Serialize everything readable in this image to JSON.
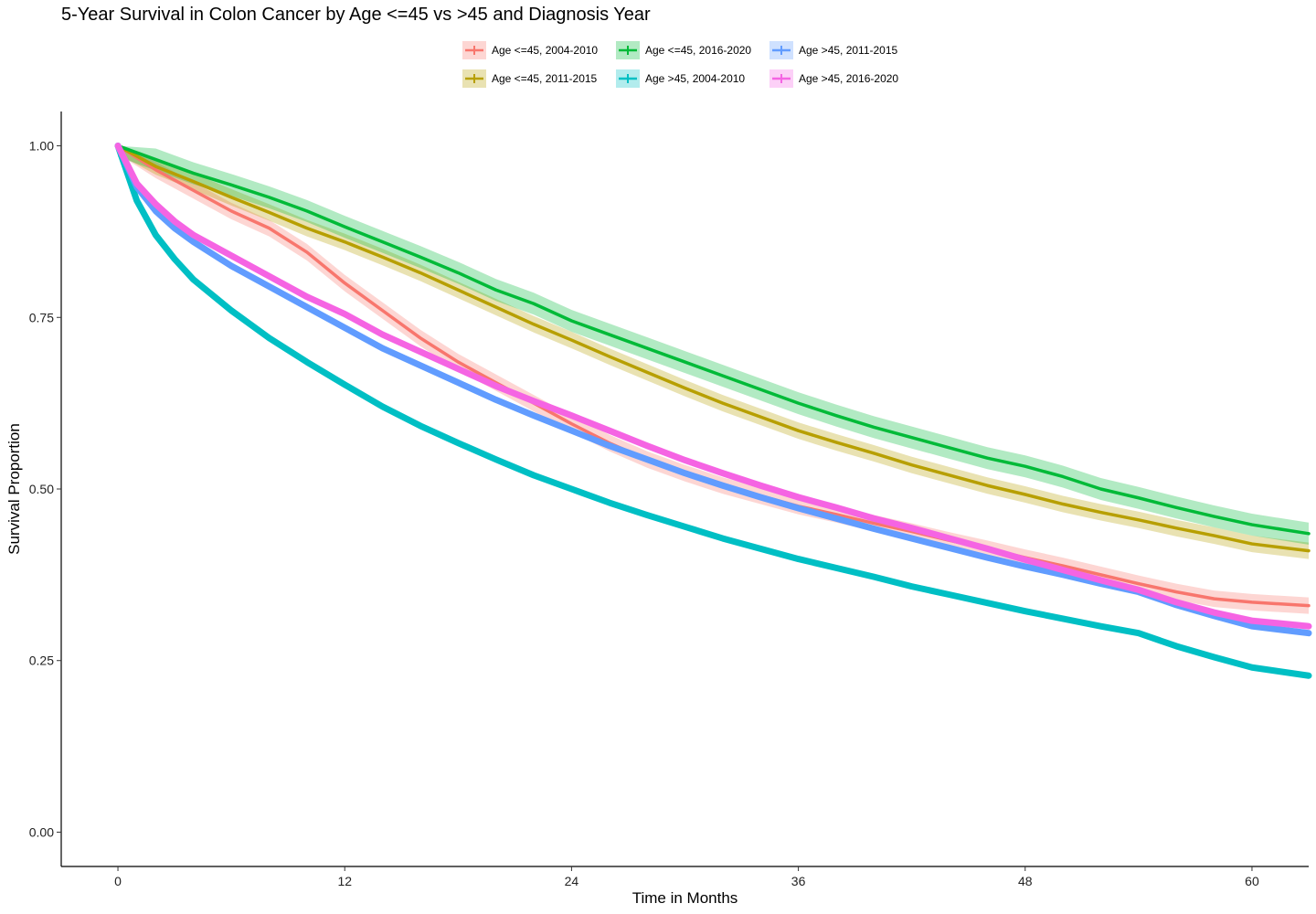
{
  "chart_data": {
    "type": "line",
    "title": "5-Year Survival in Colon Cancer by Age <=45 vs >45 and Diagnosis Year",
    "xlabel": "Time in Months",
    "ylabel": "Survival Proportion",
    "xlim": [
      -3,
      63
    ],
    "ylim": [
      -0.05,
      1.05
    ],
    "x_ticks": [
      0,
      12,
      24,
      36,
      48,
      60
    ],
    "y_ticks": [
      0.0,
      0.25,
      0.5,
      0.75,
      1.0
    ],
    "x_tick_labels": [
      "0",
      "12",
      "24",
      "36",
      "48",
      "60"
    ],
    "y_tick_labels": [
      "0.00",
      "0.25",
      "0.50",
      "0.75",
      "1.00"
    ],
    "legend_position": "top",
    "grid": false,
    "series": [
      {
        "name": "Age <=45, 2004-2010",
        "color": "#F8766D",
        "ci_halfwidth": 0.012,
        "points": [
          [
            0,
            1.0
          ],
          [
            2,
            0.965
          ],
          [
            4,
            0.935
          ],
          [
            6,
            0.905
          ],
          [
            8,
            0.88
          ],
          [
            10,
            0.845
          ],
          [
            12,
            0.8
          ],
          [
            14,
            0.76
          ],
          [
            16,
            0.72
          ],
          [
            18,
            0.685
          ],
          [
            20,
            0.655
          ],
          [
            22,
            0.625
          ],
          [
            24,
            0.595
          ],
          [
            26,
            0.567
          ],
          [
            28,
            0.543
          ],
          [
            30,
            0.523
          ],
          [
            32,
            0.505
          ],
          [
            34,
            0.49
          ],
          [
            36,
            0.475
          ],
          [
            38,
            0.463
          ],
          [
            40,
            0.45
          ],
          [
            42,
            0.438
          ],
          [
            44,
            0.425
          ],
          [
            46,
            0.413
          ],
          [
            48,
            0.4
          ],
          [
            50,
            0.388
          ],
          [
            52,
            0.375
          ],
          [
            54,
            0.362
          ],
          [
            56,
            0.35
          ],
          [
            58,
            0.34
          ],
          [
            60,
            0.335
          ],
          [
            63,
            0.33
          ]
        ]
      },
      {
        "name": "Age <=45, 2011-2015",
        "color": "#B79F00",
        "ci_halfwidth": 0.012,
        "points": [
          [
            0,
            1.0
          ],
          [
            2,
            0.97
          ],
          [
            4,
            0.948
          ],
          [
            6,
            0.925
          ],
          [
            8,
            0.903
          ],
          [
            10,
            0.88
          ],
          [
            12,
            0.86
          ],
          [
            14,
            0.838
          ],
          [
            16,
            0.815
          ],
          [
            18,
            0.79
          ],
          [
            20,
            0.765
          ],
          [
            22,
            0.74
          ],
          [
            24,
            0.717
          ],
          [
            26,
            0.693
          ],
          [
            28,
            0.67
          ],
          [
            30,
            0.647
          ],
          [
            32,
            0.625
          ],
          [
            34,
            0.605
          ],
          [
            36,
            0.585
          ],
          [
            38,
            0.568
          ],
          [
            40,
            0.552
          ],
          [
            42,
            0.535
          ],
          [
            44,
            0.52
          ],
          [
            46,
            0.505
          ],
          [
            48,
            0.492
          ],
          [
            50,
            0.478
          ],
          [
            52,
            0.466
          ],
          [
            54,
            0.455
          ],
          [
            56,
            0.443
          ],
          [
            58,
            0.432
          ],
          [
            60,
            0.42
          ],
          [
            63,
            0.41
          ]
        ]
      },
      {
        "name": "Age <=45, 2016-2020",
        "color": "#00BA38",
        "ci_halfwidth": 0.016,
        "points": [
          [
            0,
            1.0
          ],
          [
            2,
            0.98
          ],
          [
            4,
            0.96
          ],
          [
            6,
            0.943
          ],
          [
            8,
            0.925
          ],
          [
            10,
            0.905
          ],
          [
            12,
            0.882
          ],
          [
            14,
            0.86
          ],
          [
            16,
            0.838
          ],
          [
            18,
            0.815
          ],
          [
            20,
            0.79
          ],
          [
            22,
            0.77
          ],
          [
            24,
            0.745
          ],
          [
            26,
            0.725
          ],
          [
            28,
            0.705
          ],
          [
            30,
            0.685
          ],
          [
            32,
            0.665
          ],
          [
            34,
            0.645
          ],
          [
            36,
            0.625
          ],
          [
            38,
            0.607
          ],
          [
            40,
            0.59
          ],
          [
            42,
            0.575
          ],
          [
            44,
            0.56
          ],
          [
            46,
            0.545
          ],
          [
            48,
            0.533
          ],
          [
            50,
            0.518
          ],
          [
            52,
            0.5
          ],
          [
            54,
            0.487
          ],
          [
            56,
            0.473
          ],
          [
            58,
            0.46
          ],
          [
            60,
            0.448
          ],
          [
            63,
            0.435
          ]
        ]
      },
      {
        "name": "Age >45, 2004-2010",
        "color": "#00BFC4",
        "ci_halfwidth": 0.003,
        "points": [
          [
            0,
            1.0
          ],
          [
            1,
            0.92
          ],
          [
            2,
            0.87
          ],
          [
            3,
            0.835
          ],
          [
            4,
            0.805
          ],
          [
            6,
            0.76
          ],
          [
            8,
            0.72
          ],
          [
            10,
            0.685
          ],
          [
            12,
            0.652
          ],
          [
            14,
            0.62
          ],
          [
            16,
            0.592
          ],
          [
            18,
            0.567
          ],
          [
            20,
            0.543
          ],
          [
            22,
            0.52
          ],
          [
            24,
            0.5
          ],
          [
            26,
            0.48
          ],
          [
            28,
            0.462
          ],
          [
            30,
            0.445
          ],
          [
            32,
            0.428
          ],
          [
            34,
            0.413
          ],
          [
            36,
            0.398
          ],
          [
            38,
            0.385
          ],
          [
            40,
            0.372
          ],
          [
            42,
            0.358
          ],
          [
            44,
            0.346
          ],
          [
            46,
            0.334
          ],
          [
            48,
            0.322
          ],
          [
            50,
            0.311
          ],
          [
            52,
            0.3
          ],
          [
            54,
            0.29
          ],
          [
            56,
            0.271
          ],
          [
            58,
            0.255
          ],
          [
            60,
            0.24
          ],
          [
            63,
            0.228
          ]
        ]
      },
      {
        "name": "Age >45, 2011-2015",
        "color": "#619CFF",
        "ci_halfwidth": 0.004,
        "points": [
          [
            0,
            1.0
          ],
          [
            1,
            0.94
          ],
          [
            2,
            0.905
          ],
          [
            3,
            0.88
          ],
          [
            4,
            0.86
          ],
          [
            6,
            0.825
          ],
          [
            8,
            0.795
          ],
          [
            10,
            0.765
          ],
          [
            12,
            0.735
          ],
          [
            14,
            0.705
          ],
          [
            16,
            0.68
          ],
          [
            18,
            0.655
          ],
          [
            20,
            0.63
          ],
          [
            22,
            0.607
          ],
          [
            24,
            0.585
          ],
          [
            26,
            0.563
          ],
          [
            28,
            0.543
          ],
          [
            30,
            0.523
          ],
          [
            32,
            0.505
          ],
          [
            34,
            0.488
          ],
          [
            36,
            0.472
          ],
          [
            38,
            0.457
          ],
          [
            40,
            0.442
          ],
          [
            42,
            0.428
          ],
          [
            44,
            0.414
          ],
          [
            46,
            0.4
          ],
          [
            48,
            0.387
          ],
          [
            50,
            0.375
          ],
          [
            52,
            0.362
          ],
          [
            54,
            0.35
          ],
          [
            56,
            0.331
          ],
          [
            58,
            0.315
          ],
          [
            60,
            0.3
          ],
          [
            63,
            0.29
          ]
        ]
      },
      {
        "name": "Age >45, 2016-2020",
        "color": "#F564E3",
        "ci_halfwidth": 0.005,
        "points": [
          [
            0,
            1.0
          ],
          [
            1,
            0.945
          ],
          [
            2,
            0.915
          ],
          [
            3,
            0.89
          ],
          [
            4,
            0.87
          ],
          [
            6,
            0.84
          ],
          [
            8,
            0.81
          ],
          [
            10,
            0.78
          ],
          [
            12,
            0.755
          ],
          [
            14,
            0.725
          ],
          [
            16,
            0.7
          ],
          [
            18,
            0.675
          ],
          [
            20,
            0.65
          ],
          [
            22,
            0.628
          ],
          [
            24,
            0.607
          ],
          [
            26,
            0.585
          ],
          [
            28,
            0.563
          ],
          [
            30,
            0.542
          ],
          [
            32,
            0.523
          ],
          [
            34,
            0.505
          ],
          [
            36,
            0.488
          ],
          [
            38,
            0.473
          ],
          [
            40,
            0.457
          ],
          [
            42,
            0.443
          ],
          [
            44,
            0.428
          ],
          [
            46,
            0.413
          ],
          [
            48,
            0.397
          ],
          [
            50,
            0.382
          ],
          [
            52,
            0.367
          ],
          [
            54,
            0.353
          ],
          [
            56,
            0.335
          ],
          [
            58,
            0.32
          ],
          [
            60,
            0.308
          ],
          [
            63,
            0.3
          ]
        ]
      }
    ]
  }
}
